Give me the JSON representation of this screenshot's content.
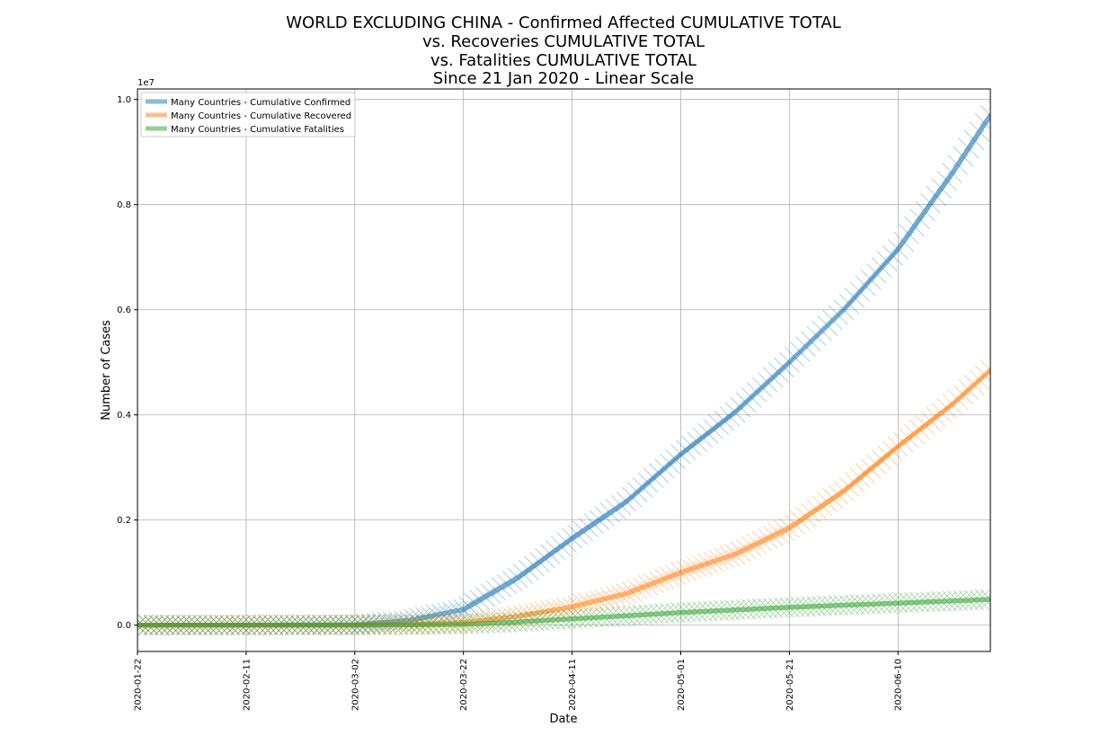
{
  "chart_data": {
    "type": "line",
    "title_lines": [
      "WORLD EXCLUDING CHINA - Confirmed Affected CUMULATIVE TOTAL",
      "vs. Recoveries CUMULATIVE TOTAL",
      "vs. Fatalities CUMULATIVE TOTAL",
      "Since 21 Jan 2020 - Linear Scale"
    ],
    "xlabel": "Date",
    "ylabel": "Number of Cases",
    "y_offset_label": "1e7",
    "x_ticks": [
      "2020-01-22",
      "2020-02-11",
      "2020-03-02",
      "2020-03-22",
      "2020-04-11",
      "2020-05-01",
      "2020-05-21",
      "2020-06-10"
    ],
    "y_ticks": [
      "0.0",
      "0.2",
      "0.4",
      "0.6",
      "0.8",
      "1.0"
    ],
    "y_tick_values": [
      0,
      0.2,
      0.4,
      0.6,
      0.8,
      1.0
    ],
    "xlim": [
      "2020-01-22",
      "2020-06-27"
    ],
    "ylim": [
      -0.05,
      1.02
    ],
    "y_unit_multiplier": 10000000,
    "grid": true,
    "legend_position": "upper-left",
    "legend": [
      "Many Countries - Cumulative Confirmed",
      "Many Countries - Cumulative Recovered",
      "Many Countries - Cumulative Fatalities"
    ],
    "series": [
      {
        "name": "Many Countries - Cumulative Confirmed",
        "color": "#1f77b4",
        "points": [
          [
            "2020-01-22",
            0
          ],
          [
            "2020-02-11",
            0.0003
          ],
          [
            "2020-03-02",
            0.001
          ],
          [
            "2020-03-12",
            0.009
          ],
          [
            "2020-03-22",
            0.03
          ],
          [
            "2020-04-01",
            0.09
          ],
          [
            "2020-04-11",
            0.165
          ],
          [
            "2020-04-21",
            0.235
          ],
          [
            "2020-05-01",
            0.325
          ],
          [
            "2020-05-11",
            0.405
          ],
          [
            "2020-05-21",
            0.5
          ],
          [
            "2020-05-31",
            0.6
          ],
          [
            "2020-06-10",
            0.715
          ],
          [
            "2020-06-20",
            0.86
          ],
          [
            "2020-06-27",
            0.97
          ]
        ]
      },
      {
        "name": "Many Countries - Cumulative Recovered",
        "color": "#ff7f0e",
        "points": [
          [
            "2020-01-22",
            0
          ],
          [
            "2020-02-11",
            0.0001
          ],
          [
            "2020-03-02",
            0.0003
          ],
          [
            "2020-03-12",
            0.0015
          ],
          [
            "2020-03-22",
            0.005
          ],
          [
            "2020-04-01",
            0.017
          ],
          [
            "2020-04-11",
            0.035
          ],
          [
            "2020-04-21",
            0.06
          ],
          [
            "2020-05-01",
            0.1
          ],
          [
            "2020-05-11",
            0.135
          ],
          [
            "2020-05-21",
            0.185
          ],
          [
            "2020-05-31",
            0.255
          ],
          [
            "2020-06-10",
            0.34
          ],
          [
            "2020-06-20",
            0.42
          ],
          [
            "2020-06-27",
            0.485
          ]
        ]
      },
      {
        "name": "Many Countries - Cumulative Fatalities",
        "color": "#2ca02c",
        "points": [
          [
            "2020-01-22",
            0
          ],
          [
            "2020-02-11",
            0
          ],
          [
            "2020-03-02",
            0.0001
          ],
          [
            "2020-03-12",
            0.0005
          ],
          [
            "2020-03-22",
            0.0015
          ],
          [
            "2020-04-01",
            0.006
          ],
          [
            "2020-04-11",
            0.012
          ],
          [
            "2020-04-21",
            0.018
          ],
          [
            "2020-05-01",
            0.024
          ],
          [
            "2020-05-11",
            0.029
          ],
          [
            "2020-05-21",
            0.034
          ],
          [
            "2020-05-31",
            0.038
          ],
          [
            "2020-06-10",
            0.042
          ],
          [
            "2020-06-20",
            0.046
          ],
          [
            "2020-06-27",
            0.049
          ]
        ]
      }
    ]
  }
}
